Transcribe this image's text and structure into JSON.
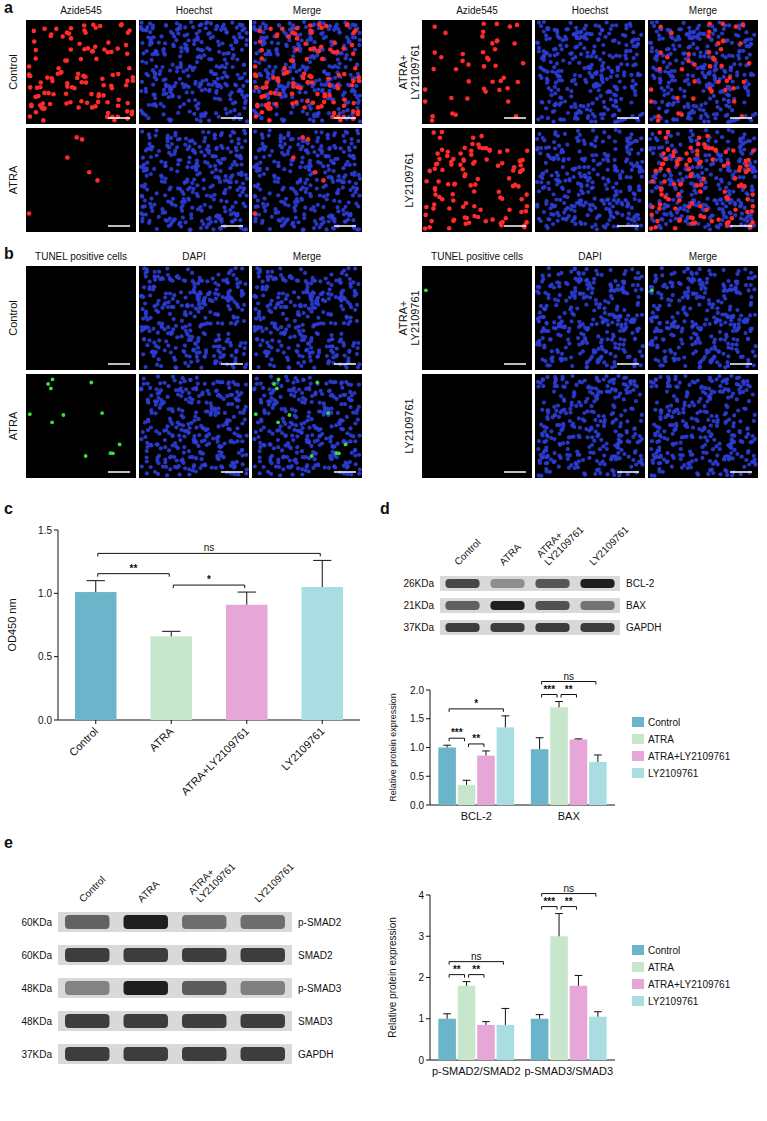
{
  "figure": {
    "a": {
      "panel_label": "a",
      "color": "#ff2b2b",
      "groups": [
        {
          "columns": [
            "Azide545",
            "Hoechst",
            "Merge"
          ],
          "rows": [
            "Control",
            "ATRA"
          ]
        },
        {
          "columns": [
            "Azide545",
            "Hoechst",
            "Merge"
          ],
          "rows": [
            "ATRA+ LY2109761",
            "LY2109761"
          ]
        }
      ]
    },
    "b": {
      "panel_label": "b",
      "color": "#39e039",
      "groups": [
        {
          "columns": [
            "TUNEL positive cells",
            "DAPI",
            "Merge"
          ],
          "rows": [
            "Control",
            "ATRA"
          ]
        },
        {
          "columns": [
            "TUNEL positive cells",
            "DAPI",
            "Merge"
          ],
          "rows": [
            "ATRA+ LY2109761",
            "LY2109761"
          ]
        }
      ]
    },
    "d_blot": {
      "lanes": [
        "Control",
        "ATRA",
        "ATRA+ LY2109761",
        "LY2109761"
      ],
      "rows": [
        {
          "protein": "BCL-2",
          "size": "26KDa"
        },
        {
          "protein": "BAX",
          "size": "21KDa"
        },
        {
          "protein": "GAPDH",
          "size": "37KDa"
        }
      ]
    },
    "e_blot": {
      "lanes": [
        "Control",
        "ATRA",
        "ATRA+ LY2109761",
        "LY2109761"
      ],
      "rows": [
        {
          "protein": "p-SMAD2",
          "size": "60KDa"
        },
        {
          "protein": "SMAD2",
          "size": "60KDa"
        },
        {
          "protein": "p-SMAD3",
          "size": "48KDa"
        },
        {
          "protein": "SMAD3",
          "size": "48KDa"
        },
        {
          "protein": "GAPDH",
          "size": "37KDa"
        }
      ]
    }
  },
  "chart_data": [
    {
      "type": "bar",
      "panel_label": "c",
      "y_label": "OD450 nm",
      "categories": [
        "Control",
        "ATRA",
        "ATRA+LY2109761",
        "LY2109761"
      ],
      "values": [
        1.01,
        0.66,
        0.91,
        1.05
      ],
      "errors": [
        0.09,
        0.04,
        0.1,
        0.21
      ],
      "colors": [
        "#6cb4c9",
        "#c7e6cc",
        "#e6a6d8",
        "#a9dde2"
      ],
      "ylim": [
        0,
        1.5
      ],
      "yticks": [
        {
          "value": 0,
          "label": "0.0"
        },
        0.5,
        {
          "value": 1,
          "label": "1.0"
        },
        1.5
      ],
      "annotations": [
        {
          "from": 0,
          "to": 1,
          "label": "**"
        },
        {
          "from": 1,
          "to": 2,
          "label": "*"
        },
        {
          "from": 0,
          "to": 3,
          "label": "ns"
        }
      ]
    },
    {
      "type": "bar",
      "panel_label": "d",
      "y_label": "Relative protein expression",
      "categories": [
        "BCL-2",
        "BAX"
      ],
      "series": [
        {
          "name": "Control",
          "color": "#6cb4c9",
          "values": [
            1.0,
            0.97
          ],
          "errors": [
            0.04,
            0.2
          ]
        },
        {
          "name": "ATRA",
          "color": "#c7e6cc",
          "values": [
            0.35,
            1.7
          ],
          "errors": [
            0.08,
            0.1
          ]
        },
        {
          "name": "ATRA+LY2109761",
          "color": "#e6a6d8",
          "values": [
            0.86,
            1.14
          ],
          "errors": [
            0.08,
            0.01
          ]
        },
        {
          "name": "LY2109761",
          "color": "#a9dde2",
          "values": [
            1.35,
            0.75
          ],
          "errors": [
            0.2,
            0.12
          ]
        }
      ],
      "ylim": [
        0,
        2
      ],
      "yticks": [
        {
          "value": 0,
          "label": "0.0"
        },
        0.5,
        {
          "value": 1,
          "label": "1.0"
        },
        1.5,
        {
          "value": 2,
          "label": "2.0"
        }
      ],
      "legend": "right",
      "annotations": [
        {
          "category": 0,
          "from": 0,
          "to": 1,
          "label": "***"
        },
        {
          "category": 0,
          "from": 1,
          "to": 2,
          "label": "**"
        },
        {
          "category": 0,
          "from": 0,
          "to": 3,
          "label": "*"
        },
        {
          "category": 1,
          "from": 0,
          "to": 1,
          "label": "***"
        },
        {
          "category": 1,
          "from": 1,
          "to": 2,
          "label": "**"
        },
        {
          "category": 1,
          "from": 0,
          "to": 3,
          "label": "ns"
        }
      ]
    },
    {
      "type": "bar",
      "panel_label": "e",
      "y_label": "Relative protein expression",
      "categories": [
        "p-SMAD2/SMAD2",
        "p-SMAD3/SMAD3"
      ],
      "series": [
        {
          "name": "Control",
          "color": "#6cb4c9",
          "values": [
            1.0,
            1.0
          ],
          "errors": [
            0.12,
            0.1
          ]
        },
        {
          "name": "ATRA",
          "color": "#c7e6cc",
          "values": [
            1.8,
            3.0
          ],
          "errors": [
            0.1,
            0.55
          ]
        },
        {
          "name": "ATRA+LY2109761",
          "color": "#e6a6d8",
          "values": [
            0.85,
            1.8
          ],
          "errors": [
            0.08,
            0.25
          ]
        },
        {
          "name": "LY2109761",
          "color": "#a9dde2",
          "values": [
            0.85,
            1.05
          ],
          "errors": [
            0.4,
            0.12
          ]
        }
      ],
      "ylim": [
        0,
        4
      ],
      "yticks": [
        0,
        1,
        2,
        3,
        4
      ],
      "legend": "right",
      "annotations": [
        {
          "category": 0,
          "from": 0,
          "to": 1,
          "label": "**"
        },
        {
          "category": 0,
          "from": 1,
          "to": 2,
          "label": "**"
        },
        {
          "category": 0,
          "from": 0,
          "to": 3,
          "label": "ns"
        },
        {
          "category": 1,
          "from": 0,
          "to": 1,
          "label": "***"
        },
        {
          "category": 1,
          "from": 1,
          "to": 2,
          "label": "**"
        },
        {
          "category": 1,
          "from": 0,
          "to": 3,
          "label": "ns"
        }
      ]
    }
  ]
}
